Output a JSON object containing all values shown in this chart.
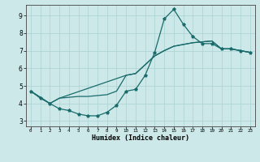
{
  "xlabel": "Humidex (Indice chaleur)",
  "background_color": "#cce8e8",
  "grid_color": "#b0d4d4",
  "line_color": "#1a6b6b",
  "xlim": [
    -0.5,
    23.5
  ],
  "ylim": [
    2.7,
    9.6
  ],
  "xticks": [
    0,
    1,
    2,
    3,
    4,
    5,
    6,
    7,
    8,
    9,
    10,
    11,
    12,
    13,
    14,
    15,
    16,
    17,
    18,
    19,
    20,
    21,
    22,
    23
  ],
  "yticks": [
    3,
    4,
    5,
    6,
    7,
    8,
    9
  ],
  "line1_x": [
    0,
    1,
    2,
    3,
    4,
    5,
    6,
    7,
    8,
    9,
    10,
    11,
    12,
    13,
    14,
    15,
    16,
    17,
    18,
    19,
    20,
    21,
    22,
    23
  ],
  "line1_y": [
    4.7,
    4.3,
    4.0,
    3.7,
    3.6,
    3.4,
    3.3,
    3.3,
    3.5,
    3.9,
    4.7,
    4.8,
    5.6,
    6.9,
    8.8,
    9.35,
    8.5,
    7.8,
    7.4,
    7.4,
    7.1,
    7.1,
    7.0,
    6.9
  ],
  "line2_x": [
    0,
    2,
    3,
    10,
    11,
    12,
    13,
    14,
    15,
    16,
    17,
    18,
    19,
    20,
    21,
    22,
    23
  ],
  "line2_y": [
    4.7,
    4.0,
    4.3,
    5.6,
    5.7,
    6.2,
    6.7,
    7.0,
    7.25,
    7.35,
    7.45,
    7.5,
    7.55,
    7.1,
    7.1,
    7.0,
    6.9
  ],
  "line3_x": [
    0,
    2,
    3,
    4,
    5,
    6,
    7,
    8,
    9,
    10,
    11,
    12,
    13,
    14,
    15,
    16,
    17,
    18,
    19,
    20,
    21,
    22,
    23
  ],
  "line3_y": [
    4.7,
    4.0,
    4.3,
    4.35,
    4.4,
    4.4,
    4.45,
    4.5,
    4.7,
    5.6,
    5.7,
    6.2,
    6.7,
    7.0,
    7.25,
    7.35,
    7.45,
    7.5,
    7.55,
    7.1,
    7.1,
    7.0,
    6.9
  ]
}
